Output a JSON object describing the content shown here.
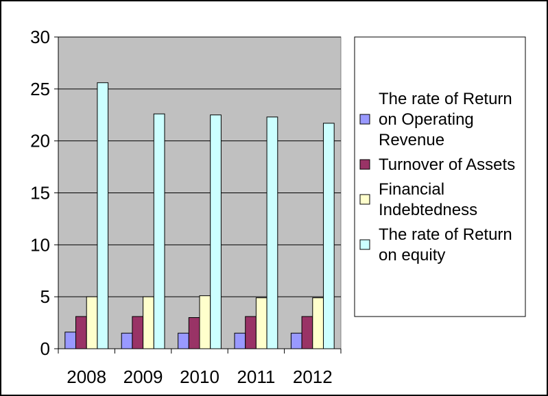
{
  "chart_data": {
    "type": "bar",
    "title": "",
    "xlabel": "",
    "ylabel": "",
    "categories": [
      "2008",
      "2009",
      "2010",
      "2011",
      "2012"
    ],
    "ylim": [
      0,
      30
    ],
    "yticks": [
      "0",
      "5",
      "10",
      "15",
      "20",
      "25",
      "30"
    ],
    "grid": true,
    "legend_position": "right",
    "plot_background": "#c0c0c0",
    "series": [
      {
        "name": "The rate of Return on Operating Revenue",
        "color": "#9999ff",
        "values": [
          1.6,
          1.5,
          1.5,
          1.5,
          1.5
        ]
      },
      {
        "name": "Turnover of Assets",
        "color": "#993366",
        "values": [
          3.1,
          3.1,
          3.0,
          3.1,
          3.1
        ]
      },
      {
        "name": "Financial Indebtedness",
        "color": "#ffffcc",
        "values": [
          5.0,
          5.0,
          5.1,
          4.9,
          4.9
        ]
      },
      {
        "name": "The rate of Return on equity",
        "color": "#ccffff",
        "values": [
          25.6,
          22.6,
          22.5,
          22.3,
          21.7
        ]
      }
    ]
  }
}
